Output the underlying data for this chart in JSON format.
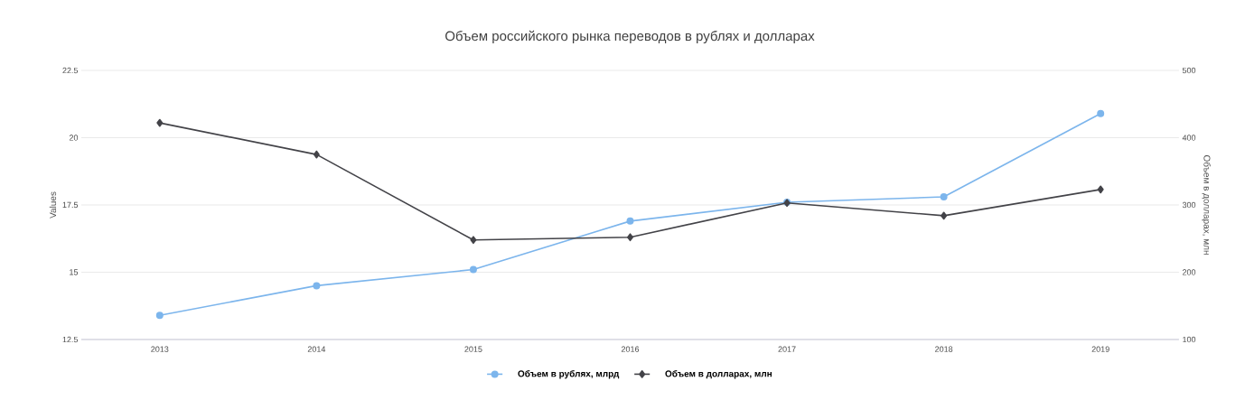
{
  "chart_data": {
    "type": "line",
    "title": "Объем российского рынка переводов в рублях и долларах",
    "categories": [
      "2013",
      "2014",
      "2015",
      "2016",
      "2017",
      "2018",
      "2019"
    ],
    "ylabel": "Values",
    "y2label": "Объем в долларах, млн",
    "ylim": [
      12.5,
      22.5
    ],
    "yticks": [
      12.5,
      15,
      17.5,
      20,
      22.5
    ],
    "y2lim": [
      100,
      500
    ],
    "y2ticks": [
      100,
      200,
      300,
      400,
      500
    ],
    "grid": "y",
    "legend": "bottom",
    "series": [
      {
        "name": "Объем в рублях, млрд",
        "color": "#7cb5ec",
        "marker": "circle",
        "values": [
          13.4,
          14.5,
          15.1,
          16.9,
          17.6,
          17.8,
          20.9
        ]
      },
      {
        "name": "Объем в долларах, млн",
        "color": "#434348",
        "marker": "diamond",
        "axis": "y2",
        "values": [
          422,
          375,
          248,
          252,
          303,
          284,
          323
        ]
      }
    ]
  }
}
